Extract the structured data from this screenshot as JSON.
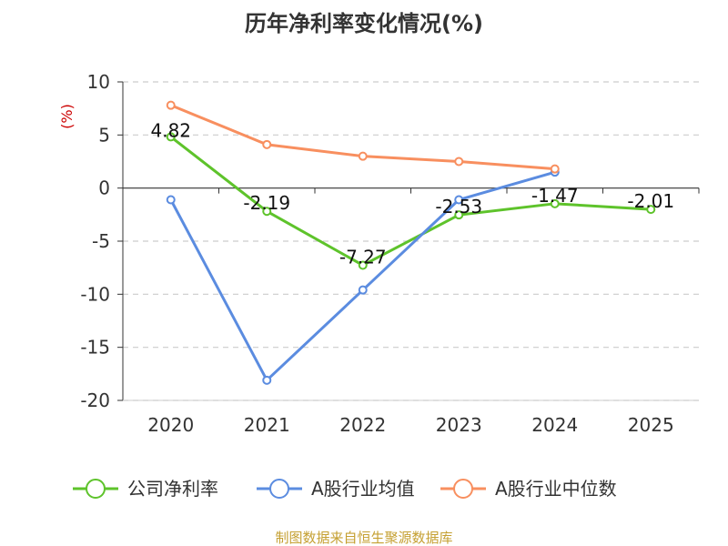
{
  "chart_data": {
    "type": "line",
    "title": "历年净利率变化情况(%)",
    "ylabel": "(%)",
    "xlabel": "",
    "categories": [
      "2020",
      "2021",
      "2022",
      "2023",
      "2024",
      "2025"
    ],
    "ylim": [
      -20,
      10
    ],
    "yticks": [
      10,
      5,
      0,
      -5,
      -10,
      -15,
      -20
    ],
    "grid": true,
    "legend_position": "bottom",
    "series": [
      {
        "name": "公司净利率",
        "color": "#5ec32b",
        "values": [
          4.82,
          -2.19,
          -7.27,
          -2.53,
          -1.47,
          -2.01
        ],
        "labels": [
          "4.82",
          "-2.19",
          "-7.27",
          "-2.53",
          "-1.47",
          "-2.01"
        ]
      },
      {
        "name": "A股行业均值",
        "color": "#5b8ce0",
        "values": [
          -1.1,
          -18.1,
          -9.6,
          -1.1,
          1.5,
          null
        ]
      },
      {
        "name": "A股行业中位数",
        "color": "#f88f5f",
        "values": [
          7.8,
          4.1,
          3.0,
          2.5,
          1.8,
          null
        ]
      }
    ],
    "ylabel_color": "#cc0000",
    "source": "制图数据来自恒生聚源数据库",
    "source_color": "#c5a032"
  }
}
